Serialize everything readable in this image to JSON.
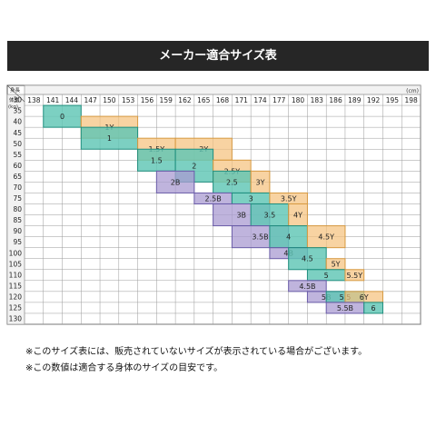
{
  "title": "メーカー適合サイズ表",
  "notes": [
    "※このサイズ表には、販売されていないサイズが表示されている場合がございます。",
    "※この数値は適合する身体のサイズの目安です。"
  ],
  "colors": {
    "teal": "#5fc6b4",
    "orange": "#f5c07a",
    "purple": "#a99bd2"
  },
  "chart_data": {
    "type": "table",
    "corner_top_label": "身長",
    "corner_bottom_label": "体重",
    "x_unit": "(cm)",
    "y_unit": "(kg)",
    "x_ticks": [
      138,
      141,
      144,
      147,
      150,
      153,
      156,
      159,
      162,
      165,
      168,
      171,
      174,
      177,
      180,
      183,
      186,
      189,
      192,
      195,
      198
    ],
    "y_ticks": [
      30,
      35,
      40,
      45,
      50,
      55,
      60,
      65,
      70,
      75,
      80,
      85,
      90,
      95,
      100,
      105,
      110,
      115,
      120,
      125,
      130
    ],
    "sizes": [
      {
        "label": "0",
        "group": "teal",
        "height": [
          141,
          147
        ],
        "weight": [
          35,
          45
        ]
      },
      {
        "label": "1Y",
        "group": "orange",
        "height": [
          147,
          156
        ],
        "weight": [
          40,
          50
        ]
      },
      {
        "label": "1",
        "group": "teal",
        "height": [
          147,
          156
        ],
        "weight": [
          45,
          55
        ]
      },
      {
        "label": "1.5Y",
        "group": "orange",
        "height": [
          156,
          162
        ],
        "weight": [
          50,
          60
        ]
      },
      {
        "label": "2Y",
        "group": "orange",
        "height": [
          162,
          171
        ],
        "weight": [
          50,
          60
        ]
      },
      {
        "label": "1.5",
        "group": "teal",
        "height": [
          156,
          162
        ],
        "weight": [
          55,
          65
        ]
      },
      {
        "label": "2",
        "group": "teal",
        "height": [
          162,
          168
        ],
        "weight": [
          55,
          70
        ]
      },
      {
        "label": "2.5Y",
        "group": "orange",
        "height": [
          168,
          174
        ],
        "weight": [
          60,
          70
        ]
      },
      {
        "label": "2B",
        "group": "purple",
        "height": [
          159,
          165
        ],
        "weight": [
          65,
          75
        ]
      },
      {
        "label": "2.5",
        "group": "teal",
        "height": [
          168,
          174
        ],
        "weight": [
          65,
          75
        ]
      },
      {
        "label": "3Y",
        "group": "orange",
        "height": [
          174,
          177
        ],
        "weight": [
          65,
          75
        ]
      },
      {
        "label": "2.5B",
        "group": "purple",
        "height": [
          165,
          171
        ],
        "weight": [
          75,
          80
        ]
      },
      {
        "label": "3",
        "group": "teal",
        "height": [
          171,
          177
        ],
        "weight": [
          75,
          80
        ]
      },
      {
        "label": "3.5Y",
        "group": "orange",
        "height": [
          177,
          183
        ],
        "weight": [
          75,
          80
        ]
      },
      {
        "label": "3B",
        "group": "purple",
        "height": [
          168,
          177
        ],
        "weight": [
          80,
          90
        ]
      },
      {
        "label": "3.5",
        "group": "teal",
        "height": [
          174,
          180
        ],
        "weight": [
          80,
          90
        ]
      },
      {
        "label": "4Y",
        "group": "orange",
        "height": [
          180,
          183
        ],
        "weight": [
          80,
          90
        ]
      },
      {
        "label": "3.5B",
        "group": "purple",
        "height": [
          171,
          180
        ],
        "weight": [
          90,
          100
        ]
      },
      {
        "label": "4",
        "group": "teal",
        "height": [
          177,
          183
        ],
        "weight": [
          90,
          100
        ]
      },
      {
        "label": "4.5Y",
        "group": "orange",
        "height": [
          183,
          189
        ],
        "weight": [
          90,
          100
        ]
      },
      {
        "label": "4B",
        "group": "purple",
        "height": [
          177,
          183
        ],
        "weight": [
          100,
          105
        ]
      },
      {
        "label": "4.5",
        "group": "teal",
        "height": [
          180,
          186
        ],
        "weight": [
          100,
          110
        ]
      },
      {
        "label": "5Y",
        "group": "orange",
        "height": [
          186,
          189
        ],
        "weight": [
          105,
          110
        ]
      },
      {
        "label": "5",
        "group": "teal",
        "height": [
          183,
          189
        ],
        "weight": [
          110,
          115
        ]
      },
      {
        "label": "5.5Y",
        "group": "orange",
        "height": [
          189,
          192
        ],
        "weight": [
          110,
          115
        ]
      },
      {
        "label": "4.5B",
        "group": "purple",
        "height": [
          180,
          186
        ],
        "weight": [
          115,
          120
        ]
      },
      {
        "label": "5B",
        "group": "purple",
        "height": [
          183,
          189
        ],
        "weight": [
          120,
          125
        ]
      },
      {
        "label": "5.5",
        "group": "teal",
        "height": [
          186,
          192
        ],
        "weight": [
          120,
          125
        ]
      },
      {
        "label": "6Y",
        "group": "orange",
        "height": [
          189,
          195
        ],
        "weight": [
          120,
          125
        ]
      },
      {
        "label": "5.5B",
        "group": "purple",
        "height": [
          186,
          192
        ],
        "weight": [
          125,
          130
        ]
      },
      {
        "label": "6",
        "group": "teal",
        "height": [
          192,
          195
        ],
        "weight": [
          125,
          130
        ]
      }
    ]
  }
}
